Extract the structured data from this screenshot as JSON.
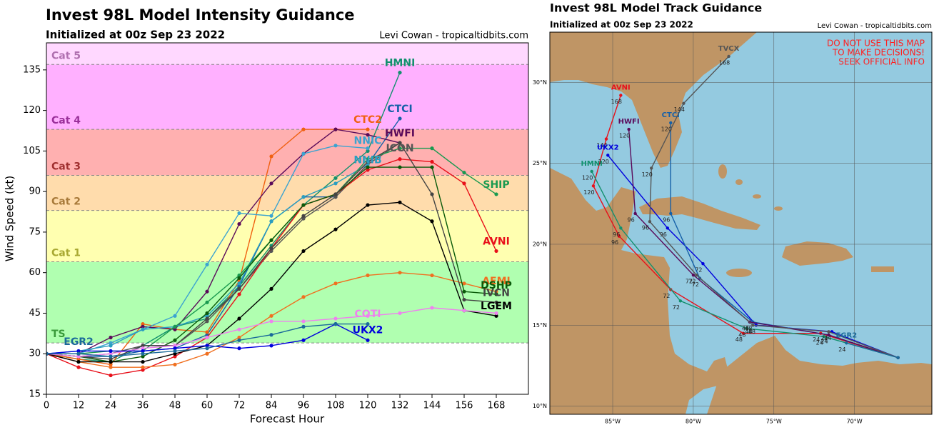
{
  "chart_data": [
    {
      "type": "line",
      "title": "Invest 98L Model Intensity Guidance",
      "subtitle": "Initialized at 00z Sep 23 2022",
      "credit": "Levi Cowan - tropicaltidbits.com",
      "xlabel": "Forecast Hour",
      "ylabel": "Wind Speed (kt)",
      "x": [
        0,
        12,
        24,
        36,
        48,
        60,
        72,
        84,
        96,
        108,
        120,
        132,
        144,
        156,
        168
      ],
      "xlim": [
        0,
        180
      ],
      "ylim": [
        15,
        145
      ],
      "xticks": [
        0,
        12,
        24,
        36,
        48,
        60,
        72,
        84,
        96,
        108,
        120,
        132,
        144,
        156,
        168
      ],
      "yticks": [
        15,
        30,
        45,
        60,
        75,
        90,
        105,
        120,
        135
      ],
      "bands": [
        {
          "name": "TS",
          "from": 34,
          "to": 64,
          "color": "#b0ffb0",
          "label_color": "#3a9a3a"
        },
        {
          "name": "Cat 1",
          "from": 64,
          "to": 83,
          "color": "#ffffb0",
          "label_color": "#a8a832"
        },
        {
          "name": "Cat 2",
          "from": 83,
          "to": 96,
          "color": "#ffdcac",
          "label_color": "#a87a3a"
        },
        {
          "name": "Cat 3",
          "from": 96,
          "to": 113,
          "color": "#ffb0b0",
          "label_color": "#a03030"
        },
        {
          "name": "Cat 4",
          "from": 113,
          "to": 137,
          "color": "#ffb0ff",
          "label_color": "#9a309a"
        },
        {
          "name": "Cat 5",
          "from": 137,
          "to": 145,
          "color": "#ffd8ff",
          "label_color": "#b070b0"
        }
      ],
      "series": [
        {
          "name": "HMNI",
          "color": "#12906e",
          "values": [
            30,
            28,
            27,
            33,
            40,
            43,
            55,
            70,
            85,
            95,
            105,
            134,
            null,
            null,
            null
          ]
        },
        {
          "name": "CTCI",
          "color": "#1560a8",
          "values": [
            30,
            29,
            29,
            31,
            32,
            37,
            55,
            79,
            88,
            88,
            100,
            117,
            null,
            null,
            null
          ]
        },
        {
          "name": "CTC2",
          "color": "#f06010",
          "values": [
            30,
            28,
            26,
            41,
            39,
            38,
            57,
            103,
            113,
            113,
            113,
            null,
            null,
            null,
            null
          ]
        },
        {
          "name": "HWFI",
          "color": "#5a0a5a",
          "values": [
            30,
            30,
            36,
            40,
            39,
            53,
            78,
            93,
            104,
            113,
            111,
            108,
            null,
            null,
            null
          ]
        },
        {
          "name": "NNIC",
          "color": "#3ba3d0",
          "values": [
            30,
            30,
            34,
            39,
            44,
            63,
            82,
            81,
            104,
            107,
            106,
            null,
            null,
            null,
            null
          ]
        },
        {
          "name": "ICON",
          "color": "#555555",
          "values": [
            30,
            29,
            30,
            33,
            33,
            42,
            54,
            68,
            80,
            88,
            100,
            108,
            null,
            null,
            null
          ]
        },
        {
          "name": "NNIB",
          "color": "#2a9ec0",
          "values": [
            30,
            31,
            33,
            39,
            40,
            44,
            56,
            79,
            88,
            93,
            100,
            null,
            null,
            null,
            null
          ]
        },
        {
          "name": "SHIP",
          "color": "#1a9a50",
          "values": [
            30,
            30,
            31,
            31,
            40,
            49,
            59,
            72,
            85,
            89,
            102,
            106,
            106,
            97,
            89
          ]
        },
        {
          "name": "AVNI",
          "color": "#e8101a",
          "values": [
            30,
            25,
            22,
            24,
            29,
            36,
            52,
            69,
            85,
            89,
            98,
            102,
            101,
            93,
            68
          ]
        },
        {
          "name": "AEMI",
          "color": "#f07020",
          "values": [
            30,
            27,
            25,
            25,
            26,
            30,
            36,
            44,
            51,
            56,
            59,
            60,
            59,
            56,
            53
          ]
        },
        {
          "name": "DSHP",
          "color": "#0a5a0a",
          "values": [
            30,
            29,
            27,
            29,
            35,
            45,
            58,
            72,
            85,
            89,
            99,
            99,
            99,
            53,
            52
          ]
        },
        {
          "name": "IVCN",
          "color": "#444444",
          "values": [
            30,
            29,
            28,
            33,
            33,
            43,
            54,
            69,
            81,
            89,
            101,
            108,
            89,
            50,
            49
          ]
        },
        {
          "name": "LGEM",
          "color": "#000000",
          "values": [
            30,
            27,
            27,
            27,
            30,
            33,
            43,
            54,
            68,
            76,
            85,
            86,
            79,
            46,
            44
          ]
        },
        {
          "name": "COTI",
          "color": "#ee82ee",
          "values": [
            30,
            29,
            30,
            32,
            33,
            36,
            39,
            42,
            42,
            43,
            44,
            45,
            47,
            46,
            45
          ]
        },
        {
          "name": "UKX2",
          "color": "#0000dd",
          "values": [
            30,
            31,
            31,
            31,
            32,
            33,
            32,
            33,
            35,
            41,
            35,
            null,
            null,
            null,
            null
          ]
        },
        {
          "name": "EGR2",
          "color": "#1a6a9a",
          "values": [
            30,
            30,
            29,
            30,
            31,
            32,
            35,
            37,
            40,
            41,
            41,
            null,
            null,
            null,
            null
          ]
        }
      ]
    },
    {
      "type": "map",
      "title": "Invest 98L Model Track Guidance",
      "subtitle": "Initialized at 00z Sep 23 2022",
      "credit": "Levi Cowan - tropicaltidbits.com",
      "warning": [
        "DO NOT USE THIS MAP",
        "TO MAKE DECISIONS!",
        "SEEK OFFICIAL INFO"
      ],
      "sea_color": "#94cae0",
      "land_color": "#bf9565",
      "xlim": [
        -88.9,
        -65.2
      ],
      "ylim": [
        9.5,
        33.1
      ],
      "xticks": [
        {
          "value": -85,
          "label": "85°W"
        },
        {
          "value": -80,
          "label": "80°W"
        },
        {
          "value": -75,
          "label": "75°W"
        },
        {
          "value": -70,
          "label": "70°W"
        }
      ],
      "yticks": [
        {
          "value": 10,
          "label": "10°N"
        },
        {
          "value": 15,
          "label": "15°N"
        },
        {
          "value": 20,
          "label": "20°N"
        },
        {
          "value": 25,
          "label": "25°N"
        },
        {
          "value": 30,
          "label": "30°N"
        }
      ],
      "series": [
        {
          "name": "AVNI",
          "color": "#e8101a",
          "hours": [
            0,
            24,
            48,
            72,
            96,
            120,
            144,
            168
          ],
          "x": [
            -67.3,
            -72.1,
            -76.9,
            -81.4,
            -84.6,
            -86.2,
            -85.4,
            -84.5
          ],
          "values": [
            13.0,
            14.5,
            14.5,
            17.2,
            20.5,
            23.6,
            26.5,
            29.2
          ]
        },
        {
          "name": "HMNI",
          "color": "#12906e",
          "hours": [
            0,
            24,
            48,
            72,
            96,
            120
          ],
          "x": [
            -67.3,
            -71.9,
            -76.7,
            -80.8,
            -84.5,
            -86.3
          ],
          "values": [
            13.0,
            14.3,
            14.8,
            16.5,
            21.0,
            24.5
          ]
        },
        {
          "name": "UKX2",
          "color": "#0000dd",
          "hours": [
            0,
            24,
            48,
            72,
            96,
            120
          ],
          "x": [
            -67.3,
            -71.4,
            -76.1,
            -79.4,
            -81.6,
            -85.3
          ],
          "values": [
            13.0,
            14.6,
            15.0,
            18.8,
            21.0,
            25.5
          ]
        },
        {
          "name": "CTCI",
          "color": "#1560a8",
          "hours": [
            0,
            24,
            48,
            72,
            96,
            120
          ],
          "x": [
            -67.3,
            -71.6,
            -76.3,
            -79.6,
            -81.4,
            -81.4
          ],
          "values": [
            13.0,
            14.4,
            15.2,
            17.9,
            21.9,
            27.5
          ]
        },
        {
          "name": "HWFI",
          "color": "#5a0a5a",
          "hours": [
            0,
            24,
            48,
            72,
            96,
            120
          ],
          "x": [
            -67.3,
            -71.6,
            -76.5,
            -80.0,
            -83.6,
            -84.0
          ],
          "values": [
            13.0,
            14.4,
            15.2,
            18.1,
            21.9,
            27.1
          ]
        },
        {
          "name": "TVCX",
          "color": "#555555",
          "hours": [
            0,
            24,
            48,
            72,
            96,
            120,
            144,
            168
          ],
          "x": [
            -67.3,
            -71.6,
            -76.3,
            -79.8,
            -82.7,
            -82.6,
            -80.6,
            -77.8
          ],
          "values": [
            13.0,
            14.6,
            15.0,
            18.1,
            21.4,
            24.7,
            28.7,
            31.6
          ]
        },
        {
          "name": "EGR2",
          "color": "#1a6a9a",
          "hours": [
            0,
            24
          ],
          "x": [
            -67.3,
            -70.5
          ],
          "values": [
            13.0,
            13.9
          ]
        }
      ]
    }
  ]
}
